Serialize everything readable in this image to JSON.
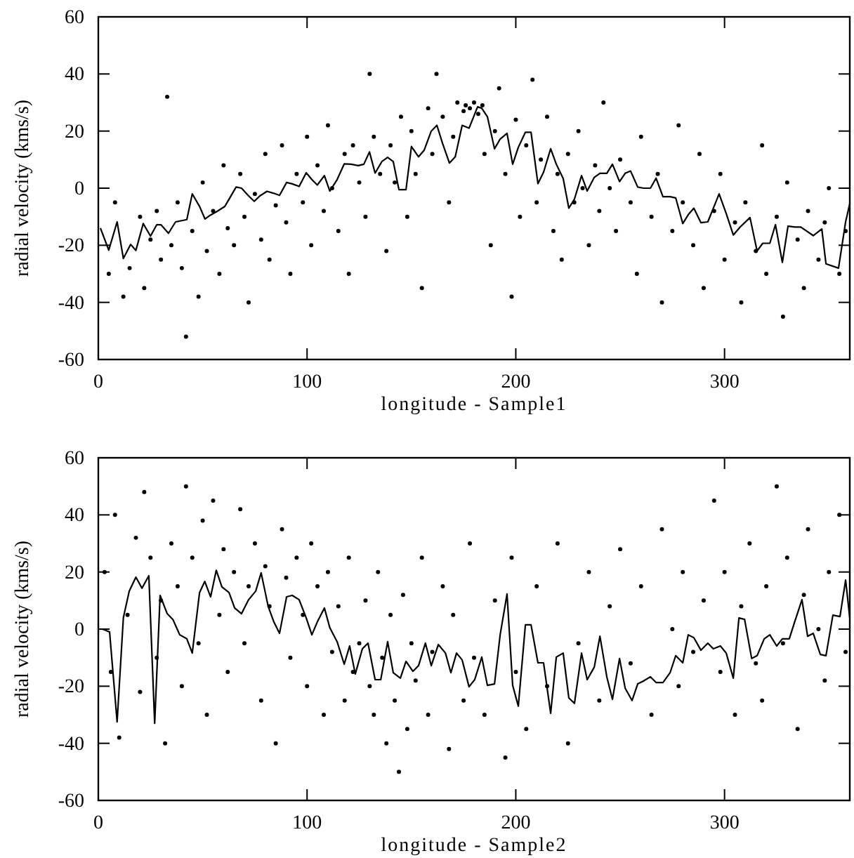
{
  "chart_data": [
    {
      "type": "scatter",
      "xlabel": "longitude - Sample1",
      "ylabel": "radial velocity (kms/s)",
      "xlim": [
        0,
        360
      ],
      "xticks": [
        0,
        100,
        200,
        300
      ],
      "ylim": [
        -60,
        60
      ],
      "yticks": [
        -60,
        -40,
        -20,
        0,
        20,
        40,
        60
      ],
      "grid": false,
      "series": [
        {
          "marker": "circle",
          "color": "#000000",
          "x": [
            5,
            8,
            12,
            15,
            20,
            22,
            25,
            28,
            30,
            33,
            35,
            38,
            40,
            42,
            45,
            48,
            50,
            52,
            55,
            58,
            60,
            62,
            65,
            68,
            70,
            72,
            75,
            78,
            80,
            82,
            85,
            88,
            90,
            92,
            95,
            98,
            100,
            102,
            105,
            108,
            110,
            112,
            115,
            118,
            120,
            122,
            125,
            128,
            130,
            132,
            135,
            138,
            140,
            142,
            145,
            148,
            150,
            152,
            155,
            158,
            160,
            162,
            165,
            168,
            170,
            172,
            175,
            176,
            178,
            180,
            182,
            184,
            185,
            188,
            190,
            192,
            195,
            198,
            200,
            202,
            205,
            208,
            210,
            212,
            215,
            218,
            220,
            222,
            225,
            228,
            230,
            232,
            235,
            238,
            240,
            242,
            245,
            248,
            250,
            255,
            258,
            260,
            265,
            268,
            270,
            275,
            278,
            280,
            285,
            288,
            290,
            295,
            298,
            300,
            305,
            308,
            310,
            315,
            318,
            320,
            325,
            328,
            330,
            335,
            338,
            340,
            345,
            348,
            350,
            355,
            358
          ],
          "values": [
            -30,
            -5,
            -38,
            -28,
            -10,
            -35,
            -18,
            -8,
            -25,
            32,
            -20,
            -5,
            -28,
            -52,
            -15,
            -38,
            2,
            -22,
            -8,
            -30,
            8,
            -14,
            -20,
            5,
            -10,
            -40,
            -2,
            -18,
            12,
            -25,
            -6,
            15,
            -12,
            -30,
            5,
            -5,
            18,
            -20,
            8,
            -8,
            22,
            0,
            -15,
            12,
            -30,
            15,
            2,
            -10,
            40,
            18,
            5,
            -22,
            15,
            2,
            25,
            -10,
            20,
            5,
            -35,
            28,
            12,
            40,
            25,
            -5,
            18,
            30,
            27,
            29,
            28,
            30,
            26,
            29,
            12,
            -20,
            20,
            35,
            5,
            -38,
            24,
            -10,
            15,
            38,
            -5,
            10,
            25,
            -15,
            5,
            -25,
            12,
            -5,
            20,
            0,
            -20,
            8,
            -8,
            30,
            0,
            -15,
            10,
            -5,
            -30,
            18,
            -10,
            5,
            -40,
            -15,
            22,
            -5,
            -20,
            12,
            -35,
            -8,
            5,
            -25,
            -12,
            -40,
            -5,
            -22,
            15,
            -30,
            -10,
            -45,
            2,
            -18,
            -35,
            -8,
            -25,
            -12,
            0,
            -30,
            -15
          ]
        },
        {
          "type": "line",
          "marker": "none",
          "color": "#000000",
          "x": [
            1,
            5,
            9,
            12,
            15.5,
            18,
            21.5,
            25,
            28,
            30,
            33.6,
            37,
            40.4,
            42.4,
            45,
            48.5,
            51.1,
            53.8,
            57.2,
            60.6,
            62.6,
            66,
            68.6,
            72,
            74.7,
            77.4,
            80.8,
            84.1,
            86.8,
            90.2,
            92.9,
            96.2,
            99.6,
            102.3,
            104.9,
            108.3,
            110.9,
            114.4,
            117.8,
            121.1,
            124.5,
            127.2,
            129.9,
            132.6,
            135.9,
            138.6,
            141.3,
            144,
            147.4,
            150,
            153.4,
            156.1,
            159.5,
            162.2,
            164.9,
            168.2,
            171,
            174.3,
            177.6,
            181.7,
            183.7,
            186.4,
            189.8,
            192.5,
            195.8,
            198.5,
            201.2,
            204.6,
            207.3,
            210.6,
            213.3,
            216.7,
            219.4,
            222.7,
            225.4,
            228.1,
            231.5,
            234.2,
            237.6,
            240.3,
            243.6,
            246.3,
            249.7,
            252.4,
            255,
            258.4,
            261.1,
            264.5,
            267.2,
            270.5,
            273.9,
            276.6,
            280,
            282.6,
            285.3,
            288.7,
            292,
            297.4,
            300.8,
            304.2,
            307.5,
            312.2,
            315.6,
            318.3,
            321.7,
            324.4,
            327.7,
            330.4,
            333.8,
            336.5,
            342.5,
            346.6,
            348.6,
            354.6,
            358,
            360
          ],
          "values": [
            -14,
            -21.7,
            -11.8,
            -24.6,
            -19.7,
            -21.8,
            -12.4,
            -16.8,
            -12.8,
            -12.8,
            -15.8,
            -11.8,
            -11.3,
            -11,
            -2,
            -6.4,
            -10.8,
            -9.4,
            -8,
            -6.4,
            -3.9,
            0.4,
            0,
            -2.7,
            -4.6,
            -2.7,
            -1.1,
            -1.8,
            -2.5,
            2,
            1.5,
            0.6,
            5.4,
            3,
            1.1,
            4.4,
            -1,
            3,
            8.5,
            8.4,
            7.9,
            8.4,
            12.7,
            5.3,
            9.4,
            10.8,
            9.3,
            -0.5,
            -0.5,
            14.6,
            11,
            13.3,
            20,
            22,
            15.7,
            8.8,
            11,
            22,
            21,
            28.5,
            28,
            25,
            13.8,
            17.2,
            19.2,
            8.4,
            14.3,
            19.6,
            19.6,
            1.6,
            5.6,
            13.8,
            8.4,
            3.4,
            -7,
            -3.8,
            4.4,
            -1,
            3.8,
            5.2,
            5.2,
            8.4,
            2.3,
            5.2,
            6,
            0.4,
            0,
            0,
            3.5,
            -3,
            -3,
            -3.4,
            -12.4,
            -9.3,
            -7,
            -12.1,
            -11.8,
            -2,
            -8.9,
            -16.4,
            -13.6,
            -10.3,
            -22,
            -19.3,
            -19.3,
            -12.8,
            -26,
            -13.3,
            -13.6,
            -13.6,
            -16.6,
            -14.3,
            -26.5,
            -28,
            -11.8,
            -5.4
          ]
        }
      ]
    },
    {
      "type": "scatter",
      "xlabel": "longitude - Sample2",
      "ylabel": "radial velocity (kms/s)",
      "xlim": [
        0,
        360
      ],
      "xticks": [
        0,
        100,
        200,
        300
      ],
      "ylim": [
        -60,
        60
      ],
      "yticks": [
        -60,
        -40,
        -20,
        0,
        20,
        40,
        60
      ],
      "grid": false,
      "series": [
        {
          "marker": "circle",
          "color": "#000000",
          "x": [
            3,
            6,
            8,
            10,
            14,
            18,
            20,
            22,
            25,
            28,
            30,
            32,
            35,
            38,
            40,
            42,
            45,
            48,
            50,
            52,
            55,
            58,
            60,
            62,
            65,
            68,
            70,
            72,
            75,
            78,
            80,
            82,
            85,
            88,
            90,
            92,
            95,
            98,
            100,
            102,
            105,
            108,
            110,
            112,
            115,
            118,
            120,
            122,
            125,
            128,
            130,
            132,
            134,
            136,
            138,
            140,
            142,
            144,
            146,
            148,
            150,
            152,
            155,
            158,
            160,
            165,
            168,
            170,
            175,
            178,
            180,
            185,
            190,
            195,
            198,
            200,
            205,
            210,
            215,
            220,
            225,
            230,
            235,
            240,
            245,
            250,
            255,
            260,
            265,
            270,
            275,
            278,
            280,
            285,
            290,
            295,
            298,
            300,
            305,
            308,
            312,
            315,
            318,
            320,
            325,
            328,
            330,
            335,
            338,
            340,
            345,
            348,
            350,
            355,
            358
          ],
          "values": [
            20,
            -15,
            40,
            -38,
            5,
            32,
            -22,
            48,
            25,
            -10,
            10,
            -40,
            30,
            15,
            -20,
            50,
            25,
            -5,
            38,
            -30,
            45,
            5,
            28,
            -15,
            20,
            42,
            -5,
            15,
            30,
            -25,
            22,
            8,
            -40,
            35,
            18,
            -10,
            25,
            5,
            -20,
            30,
            15,
            -30,
            20,
            -8,
            8,
            -25,
            25,
            -15,
            -5,
            10,
            -20,
            -30,
            20,
            -10,
            -40,
            5,
            -25,
            -50,
            12,
            -35,
            -5,
            -18,
            25,
            -30,
            -8,
            15,
            -42,
            5,
            -25,
            30,
            -10,
            -30,
            10,
            -45,
            25,
            -15,
            -35,
            15,
            -20,
            30,
            -40,
            -5,
            20,
            -25,
            8,
            28,
            -12,
            15,
            -30,
            35,
            0,
            -20,
            20,
            -8,
            10,
            45,
            -15,
            20,
            -30,
            8,
            30,
            -12,
            -25,
            15,
            50,
            -5,
            25,
            -35,
            12,
            35,
            0,
            -18,
            20,
            40,
            -8
          ]
        },
        {
          "type": "line",
          "marker": "none",
          "color": "#000000",
          "x": [
            2,
            5.4,
            9,
            12,
            14.8,
            18,
            20.9,
            24.2,
            27,
            29.6,
            33,
            35.7,
            39,
            42.4,
            45,
            48.5,
            51,
            53.8,
            56.5,
            59.2,
            62.6,
            65.3,
            68.6,
            72,
            75.4,
            78,
            81.4,
            84.1,
            86.8,
            90.2,
            92.9,
            96.2,
            99.6,
            102.3,
            104.9,
            108.3,
            110.9,
            114.4,
            117.8,
            120.4,
            123.1,
            126.5,
            129.2,
            132.6,
            135.3,
            138.6,
            141.3,
            144.7,
            147.4,
            150.7,
            153.4,
            156.7,
            159.5,
            162.9,
            166.3,
            168.9,
            171.6,
            174.3,
            177.6,
            180.3,
            183.7,
            186.4,
            189.8,
            192.5,
            195.8,
            198.5,
            201.2,
            204.6,
            207.3,
            210.6,
            213.3,
            216.7,
            219.4,
            222.7,
            225.4,
            228.1,
            231.5,
            234.2,
            237.6,
            240.3,
            243.6,
            246.3,
            249.7,
            252.4,
            255.7,
            258.4,
            261.1,
            264.5,
            267.2,
            270.5,
            273.9,
            276.6,
            280,
            282.6,
            285.3,
            288.7,
            292,
            294.6,
            298,
            300.8,
            304.2,
            306.9,
            309.6,
            313,
            315.6,
            319,
            321.7,
            325,
            327.7,
            331,
            333.8,
            337.1,
            339.8,
            342.5,
            345.9,
            348.6,
            351.9,
            355.3,
            358,
            360
          ],
          "values": [
            0,
            -1,
            -32.5,
            4,
            13.3,
            18.2,
            14.3,
            18.7,
            -33,
            11.8,
            5.4,
            3.4,
            -2,
            -3.4,
            -8.4,
            12.8,
            16.7,
            11.3,
            20.6,
            14.8,
            12.8,
            7.4,
            5.4,
            10.3,
            13.3,
            19.7,
            7.9,
            2.5,
            -1.5,
            11.3,
            11.8,
            10.3,
            3.9,
            -2,
            2.5,
            7.4,
            0.5,
            -4.4,
            -12.3,
            -5.9,
            -15.7,
            -6.9,
            -4.9,
            -17.7,
            -17.7,
            -4.4,
            -15.3,
            -17.2,
            -11.3,
            -14.8,
            -12.8,
            -4.9,
            -12.8,
            -5.4,
            -8.4,
            -15.3,
            -8.4,
            -10.8,
            -20.2,
            -17.7,
            -9.8,
            -19.7,
            -19.2,
            -2,
            12.3,
            -19.7,
            -27,
            1.5,
            1.5,
            -11.8,
            -11.8,
            -29.5,
            -9.8,
            -8.4,
            -24.1,
            -26,
            -8.4,
            -17.7,
            -13.3,
            -2.5,
            -16.7,
            -24.6,
            -10.3,
            -20.7,
            -25,
            -19.2,
            -18.2,
            -16.7,
            -18.7,
            -18.7,
            -15.3,
            -9.3,
            -11.8,
            -2,
            -3,
            -7.4,
            -4.9,
            -6.9,
            -5.9,
            -8.4,
            -17.2,
            3.9,
            3.4,
            -10.3,
            -9.3,
            -3.4,
            -2,
            -5.9,
            -3.4,
            -3.4,
            3,
            10.3,
            -2.5,
            -1.5,
            -8.9,
            -9.3,
            4.9,
            4.4,
            17.2,
            3.9
          ]
        }
      ]
    }
  ]
}
